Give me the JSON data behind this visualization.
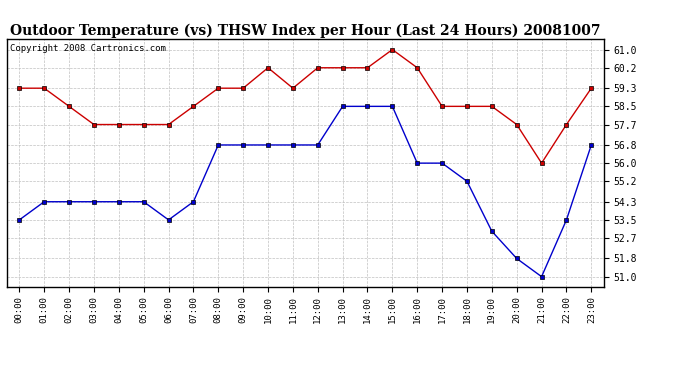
{
  "title": "Outdoor Temperature (vs) THSW Index per Hour (Last 24 Hours) 20081007",
  "copyright": "Copyright 2008 Cartronics.com",
  "hours": [
    0,
    1,
    2,
    3,
    4,
    5,
    6,
    7,
    8,
    9,
    10,
    11,
    12,
    13,
    14,
    15,
    16,
    17,
    18,
    19,
    20,
    21,
    22,
    23
  ],
  "red_data": [
    59.3,
    59.3,
    58.5,
    57.7,
    57.7,
    57.7,
    57.7,
    58.5,
    59.3,
    59.3,
    60.2,
    59.3,
    60.2,
    60.2,
    60.2,
    61.0,
    60.2,
    58.5,
    58.5,
    58.5,
    57.7,
    56.0,
    57.7,
    59.3
  ],
  "blue_data": [
    53.5,
    54.3,
    54.3,
    54.3,
    54.3,
    54.3,
    53.5,
    54.3,
    56.8,
    56.8,
    56.8,
    56.8,
    56.8,
    58.5,
    58.5,
    58.5,
    56.0,
    56.0,
    55.2,
    53.0,
    51.8,
    51.0,
    53.5,
    56.8
  ],
  "ylim_min": 50.55,
  "ylim_max": 61.45,
  "yticks": [
    51.0,
    51.8,
    52.7,
    53.5,
    54.3,
    55.2,
    56.0,
    56.8,
    57.7,
    58.5,
    59.3,
    60.2,
    61.0
  ],
  "red_color": "#cc0000",
  "blue_color": "#0000cc",
  "grid_color": "#c0c0c0",
  "bg_color": "#ffffff",
  "title_fontsize": 10,
  "copyright_fontsize": 6.5
}
